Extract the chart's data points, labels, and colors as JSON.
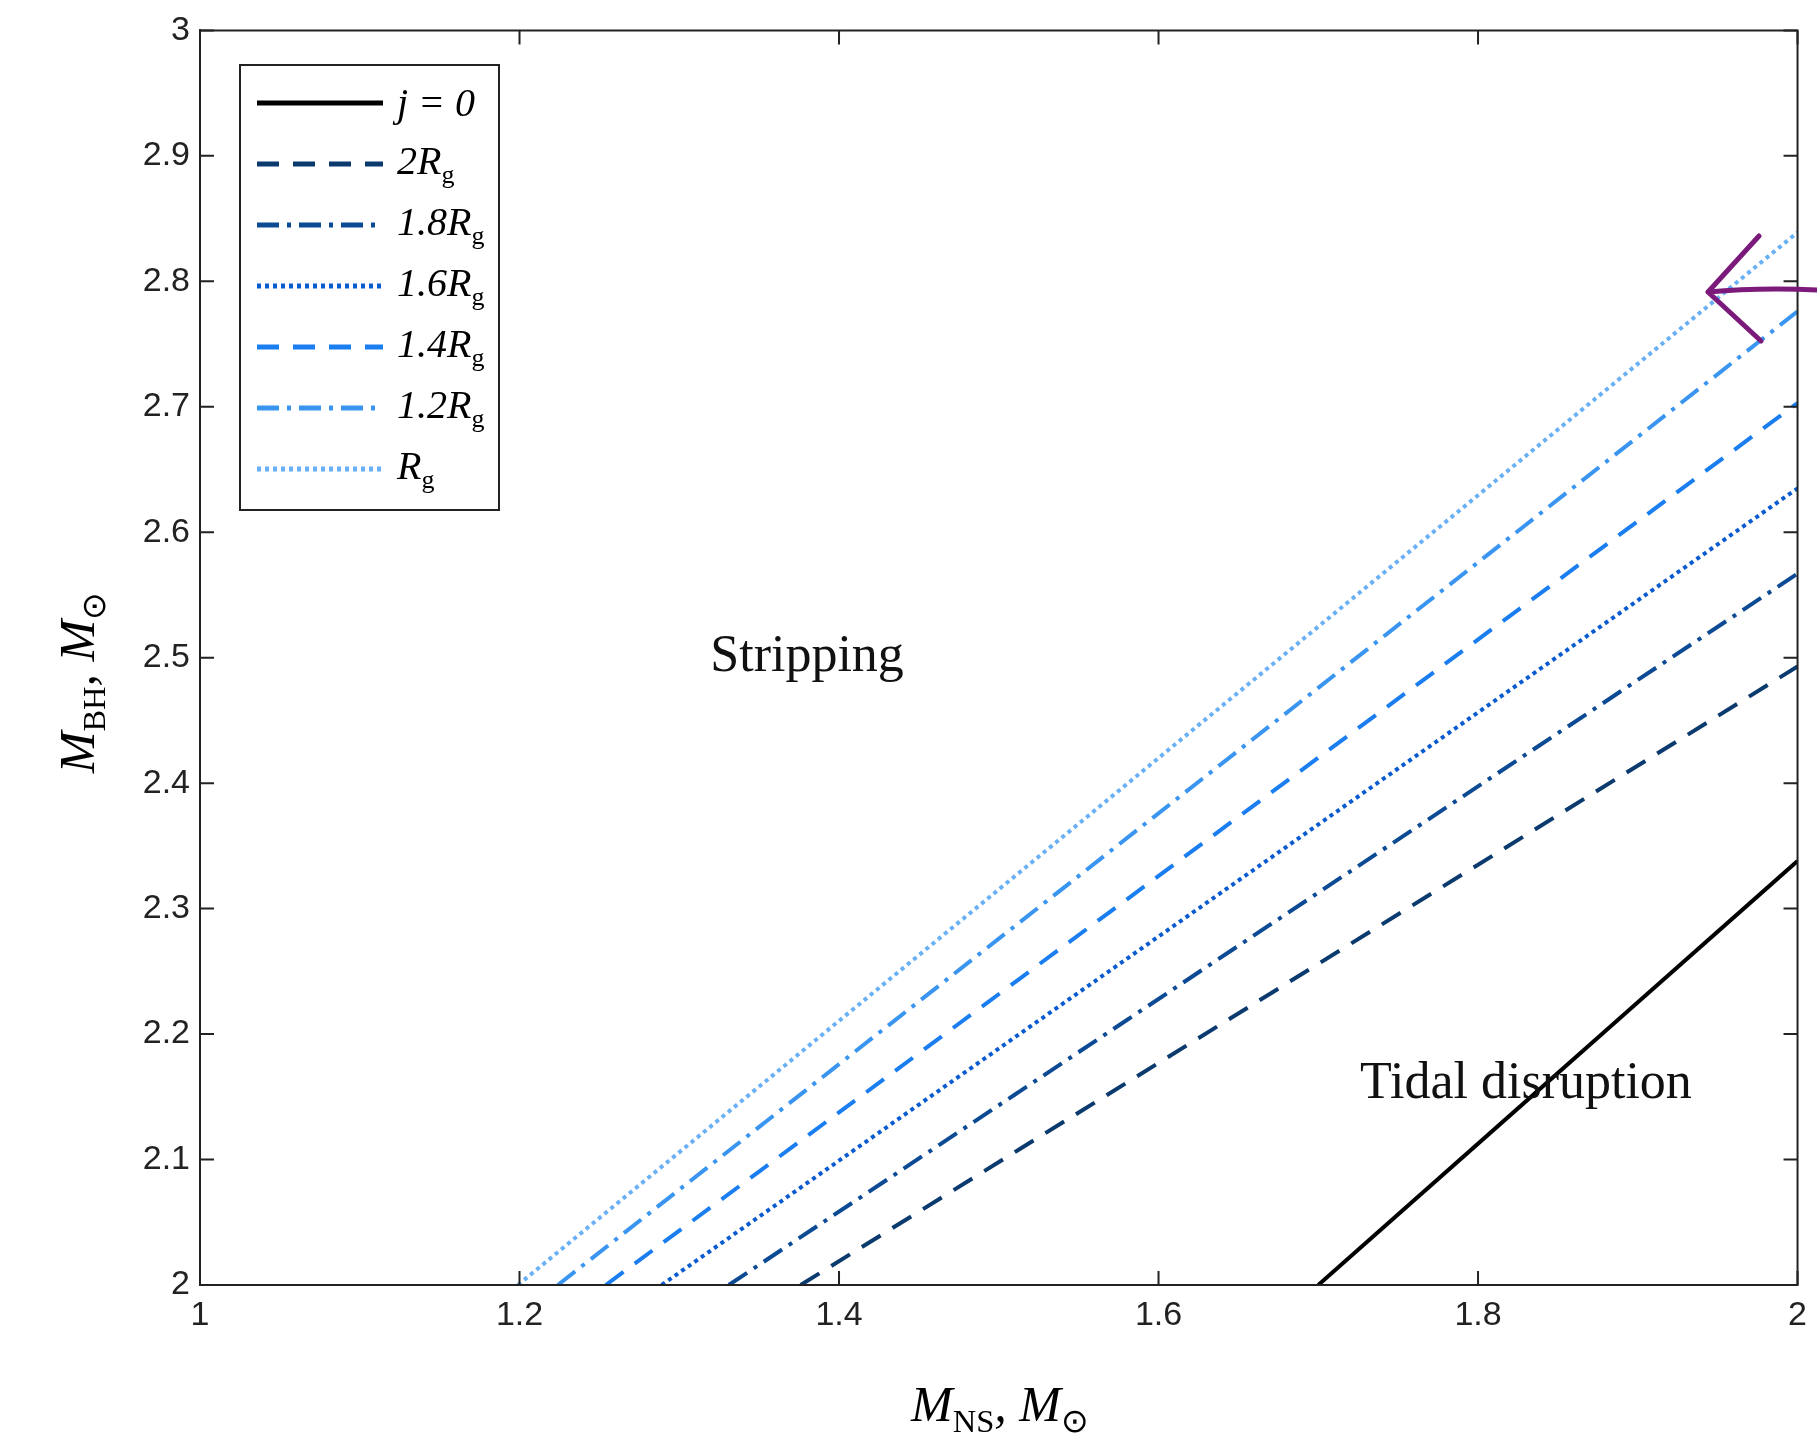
{
  "chart_data": {
    "type": "line",
    "xlabel": "M$_{NS}$, M$_{⊙}$",
    "ylabel": "M$_{BH}$, M$_{⊙}$",
    "xlim": [
      1,
      2
    ],
    "xticks": [
      1,
      1.2,
      1.4,
      1.6,
      1.8,
      2
    ],
    "ylim": [
      2,
      3
    ],
    "yticks": [
      2,
      2.1,
      2.2,
      2.3,
      2.4,
      2.5,
      2.6,
      2.7,
      2.8,
      2.9,
      3
    ],
    "legend": "top left",
    "marker": "none",
    "grid": false,
    "annotations": [
      "Stripping",
      "Tidal disruption"
    ],
    "series": [
      {
        "name": "j = 0",
        "color": "#000000",
        "line_style": "solid",
        "x": [
          1.7,
          2
        ],
        "values": [
          2,
          2.338
        ]
      },
      {
        "name": "2R$_{g}$",
        "color": "#0b3a6e",
        "line_style": "dashed",
        "x": [
          1.376,
          2
        ],
        "values": [
          2,
          2.493
        ]
      },
      {
        "name": "1.8R$_{g}$",
        "color": "#0d4a94",
        "line_style": "dashdot",
        "x": [
          1.331,
          2
        ],
        "values": [
          2,
          2.567
        ]
      },
      {
        "name": "1.6R$_{g}$",
        "color": "#0a5bd0",
        "line_style": "dotted",
        "x": [
          1.289,
          2
        ],
        "values": [
          2,
          2.635
        ]
      },
      {
        "name": "1.4R$_{g}$",
        "color": "#1a7df0",
        "line_style": "dashed",
        "x": [
          1.254,
          2
        ],
        "values": [
          2,
          2.703
        ]
      },
      {
        "name": "1.2R$_{g}$",
        "color": "#3a95f0",
        "line_style": "dashdot",
        "x": [
          1.224,
          2
        ],
        "values": [
          2,
          2.776
        ]
      },
      {
        "name": "R$_{g}$",
        "color": "#6ab0f5",
        "line_style": "dotted",
        "x": [
          1.199,
          2
        ],
        "values": [
          2,
          2.839
        ]
      }
    ]
  }
}
